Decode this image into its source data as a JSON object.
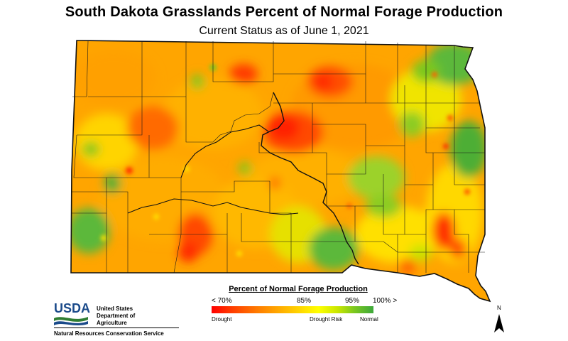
{
  "title": "South Dakota Grasslands Percent of Normal Forage Production",
  "subtitle": "Current Status as of June 1, 2021",
  "legend": {
    "title": "Percent of Normal Forage Production",
    "ticks": [
      "< 70%",
      "85%",
      "95%",
      "100% >"
    ],
    "captions": [
      "Drought",
      "Drought Risk",
      "Normal"
    ],
    "colors": [
      "#ff0000",
      "#ff8200",
      "#ffc000",
      "#ffff00",
      "#7cc81e",
      "#3ca83c"
    ]
  },
  "agency": {
    "logo_text": "USDA",
    "name_lines": [
      "United States",
      "Department of",
      "Agriculture"
    ],
    "service": "Natural Resources Conservation Service"
  },
  "north_label": "N",
  "colors": {
    "drought": "#ff2a00",
    "orange": "#ff9100",
    "gold": "#ffc400",
    "yellow": "#ffee00",
    "green": "#5cb83a"
  }
}
